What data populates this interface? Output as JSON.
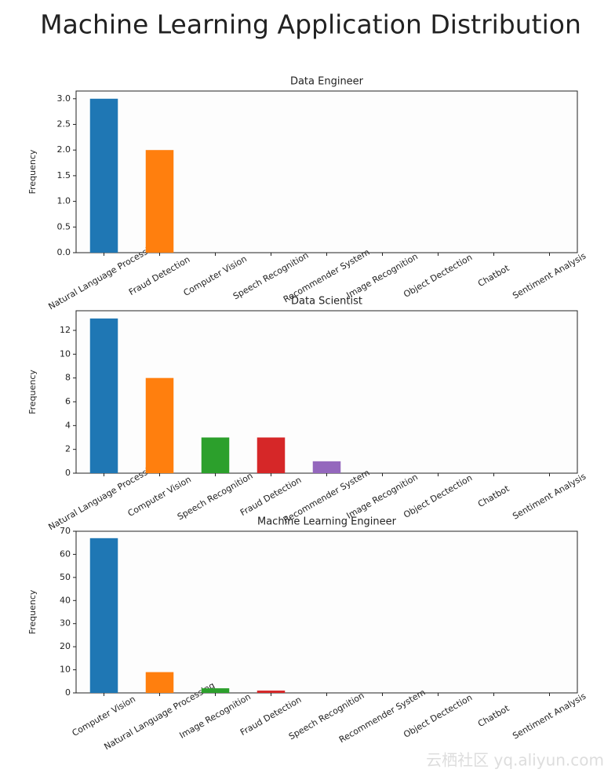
{
  "title": "Machine Learning Application Distribution",
  "watermark": "云栖社区 yq.aliyun.com",
  "chart_data": [
    {
      "type": "bar",
      "title": "Data Engineer",
      "ylabel": "Frequency",
      "categories": [
        "Natural Language Processing",
        "Fraud Detection",
        "Computer Vision",
        "Speech Recognition",
        "Recommender System",
        "Image Recognition",
        "Object Dectection",
        "Chatbot",
        "Sentiment Analysis"
      ],
      "values": [
        3,
        2,
        0,
        0,
        0,
        0,
        0,
        0,
        0
      ],
      "colors": [
        "#1f77b4",
        "#ff7f0e",
        "#2ca02c",
        "#d62728",
        "#9467bd",
        "#8c564b",
        "#e377c2",
        "#7f7f7f",
        "#bcbd22"
      ],
      "ylim": [
        0,
        3.15
      ],
      "yticks": [
        {
          "value": 0,
          "label": "0.0"
        },
        0.5,
        {
          "value": 1,
          "label": "1.0"
        },
        1.5,
        {
          "value": 2,
          "label": "2.0"
        },
        2.5,
        {
          "value": 3,
          "label": "3.0"
        }
      ]
    },
    {
      "type": "bar",
      "title": "Data Scientist",
      "ylabel": "Frequency",
      "categories": [
        "Natural Language Processing",
        "Computer Vision",
        "Speech Recognition",
        "Fraud Detection",
        "Recommender System",
        "Image Recognition",
        "Object Dectection",
        "Chatbot",
        "Sentiment Analysis"
      ],
      "values": [
        13,
        8,
        3,
        3,
        1,
        0,
        0,
        0,
        0
      ],
      "colors": [
        "#1f77b4",
        "#ff7f0e",
        "#2ca02c",
        "#d62728",
        "#9467bd",
        "#8c564b",
        "#e377c2",
        "#7f7f7f",
        "#bcbd22"
      ],
      "ylim": [
        0,
        13.65
      ],
      "yticks": [
        0,
        2,
        4,
        6,
        8,
        10,
        12
      ]
    },
    {
      "type": "bar",
      "title": "Machine Learning Engineer",
      "ylabel": "Frequency",
      "categories": [
        "Computer Vision",
        "Natural Language Processing",
        "Image Recognition",
        "Fraud Detection",
        "Speech Recognition",
        "Recommender System",
        "Object Dectection",
        "Chatbot",
        "Sentiment Analysis"
      ],
      "values": [
        67,
        9,
        2,
        1,
        0,
        0,
        0,
        0,
        0
      ],
      "colors": [
        "#1f77b4",
        "#ff7f0e",
        "#2ca02c",
        "#d62728",
        "#9467bd",
        "#8c564b",
        "#e377c2",
        "#7f7f7f",
        "#bcbd22"
      ],
      "ylim": [
        0,
        70
      ],
      "yticks": [
        0,
        10,
        20,
        30,
        40,
        50,
        60,
        70
      ]
    }
  ]
}
